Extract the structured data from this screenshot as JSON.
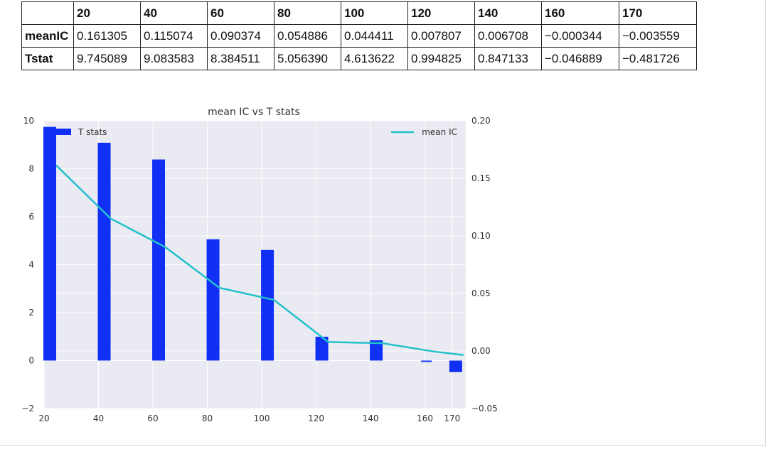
{
  "table": {
    "columns": [
      "",
      "20",
      "40",
      "60",
      "80",
      "100",
      "120",
      "140",
      "160",
      "170"
    ],
    "rows": [
      {
        "label": "meanIC",
        "values": [
          "0.161305",
          "0.115074",
          "0.090374",
          "0.054886",
          "0.044411",
          "0.007807",
          "0.006708",
          "−0.000344",
          "−0.003559"
        ]
      },
      {
        "label": "Tstat",
        "values": [
          "9.745089",
          "9.083583",
          "8.384511",
          "5.056390",
          "4.613622",
          "0.994825",
          "0.847133",
          "−0.046889",
          "−0.481726"
        ]
      }
    ]
  },
  "chart_data": {
    "type": "bar",
    "title": "mean IC vs T stats",
    "xlabel": "",
    "ylabel": "",
    "x": [
      20,
      40,
      60,
      80,
      100,
      120,
      140,
      160,
      170
    ],
    "series": [
      {
        "name": "T stats",
        "type": "bar",
        "axis": "left",
        "color": "#1030f5",
        "values": [
          9.745089,
          9.083583,
          8.384511,
          5.05639,
          4.613622,
          0.994825,
          0.847133,
          -0.046889,
          -0.481726
        ]
      },
      {
        "name": "mean IC",
        "type": "line",
        "axis": "right",
        "color": "#22c1cc",
        "values": [
          0.161305,
          0.115074,
          0.090374,
          0.054886,
          0.044411,
          0.007807,
          0.006708,
          -0.000344,
          -0.003559
        ]
      }
    ],
    "xlim": [
      20,
      175
    ],
    "ylim_left": [
      -2,
      10
    ],
    "ylim_right": [
      -0.05,
      0.2
    ],
    "x_ticks": [
      "20",
      "40",
      "60",
      "80",
      "100",
      "120",
      "140",
      "160",
      "170"
    ],
    "y_left_ticks": [
      "−2",
      "0",
      "2",
      "4",
      "6",
      "8",
      "10"
    ],
    "y_right_ticks": [
      "−0.05",
      "0.00",
      "0.05",
      "0.10",
      "0.15",
      "0.20"
    ],
    "grid": true,
    "legend_left": "top-left",
    "legend_right": "top-right",
    "plot_background": "#eaeaf2"
  }
}
